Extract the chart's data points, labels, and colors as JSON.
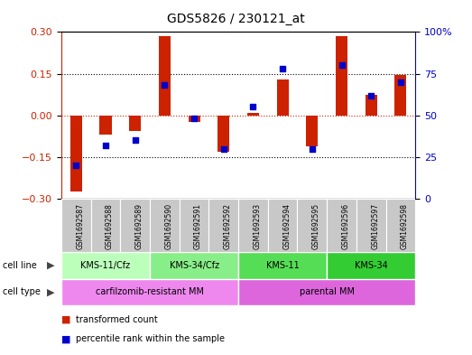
{
  "title": "GDS5826 / 230121_at",
  "samples": [
    "GSM1692587",
    "GSM1692588",
    "GSM1692589",
    "GSM1692590",
    "GSM1692591",
    "GSM1692592",
    "GSM1692593",
    "GSM1692594",
    "GSM1692595",
    "GSM1692596",
    "GSM1692597",
    "GSM1692598"
  ],
  "transformed_count": [
    -0.275,
    -0.07,
    -0.055,
    0.285,
    -0.025,
    -0.13,
    0.01,
    0.13,
    -0.11,
    0.285,
    0.075,
    0.145
  ],
  "percentile_rank": [
    20,
    32,
    35,
    68,
    48,
    30,
    55,
    78,
    30,
    80,
    62,
    70
  ],
  "ylim_left": [
    -0.3,
    0.3
  ],
  "ylim_right": [
    0,
    100
  ],
  "yticks_left": [
    -0.3,
    -0.15,
    0,
    0.15,
    0.3
  ],
  "yticks_right": [
    0,
    25,
    50,
    75,
    100
  ],
  "bar_color": "#cc2200",
  "dot_color": "#0000cc",
  "bg_color": "#ffffff",
  "cell_line_groups": [
    {
      "label": "KMS-11/Cfz",
      "start": 0,
      "end": 3,
      "color": "#bbffbb"
    },
    {
      "label": "KMS-34/Cfz",
      "start": 3,
      "end": 6,
      "color": "#88ee88"
    },
    {
      "label": "KMS-11",
      "start": 6,
      "end": 9,
      "color": "#55dd55"
    },
    {
      "label": "KMS-34",
      "start": 9,
      "end": 12,
      "color": "#33cc33"
    }
  ],
  "cell_type_groups": [
    {
      "label": "carfilzomib-resistant MM",
      "start": 0,
      "end": 6,
      "color": "#ee88ee"
    },
    {
      "label": "parental MM",
      "start": 6,
      "end": 12,
      "color": "#dd66dd"
    }
  ],
  "sample_bg_color": "#c8c8c8",
  "label_arrow_color": "#444444",
  "bar_width": 0.4
}
